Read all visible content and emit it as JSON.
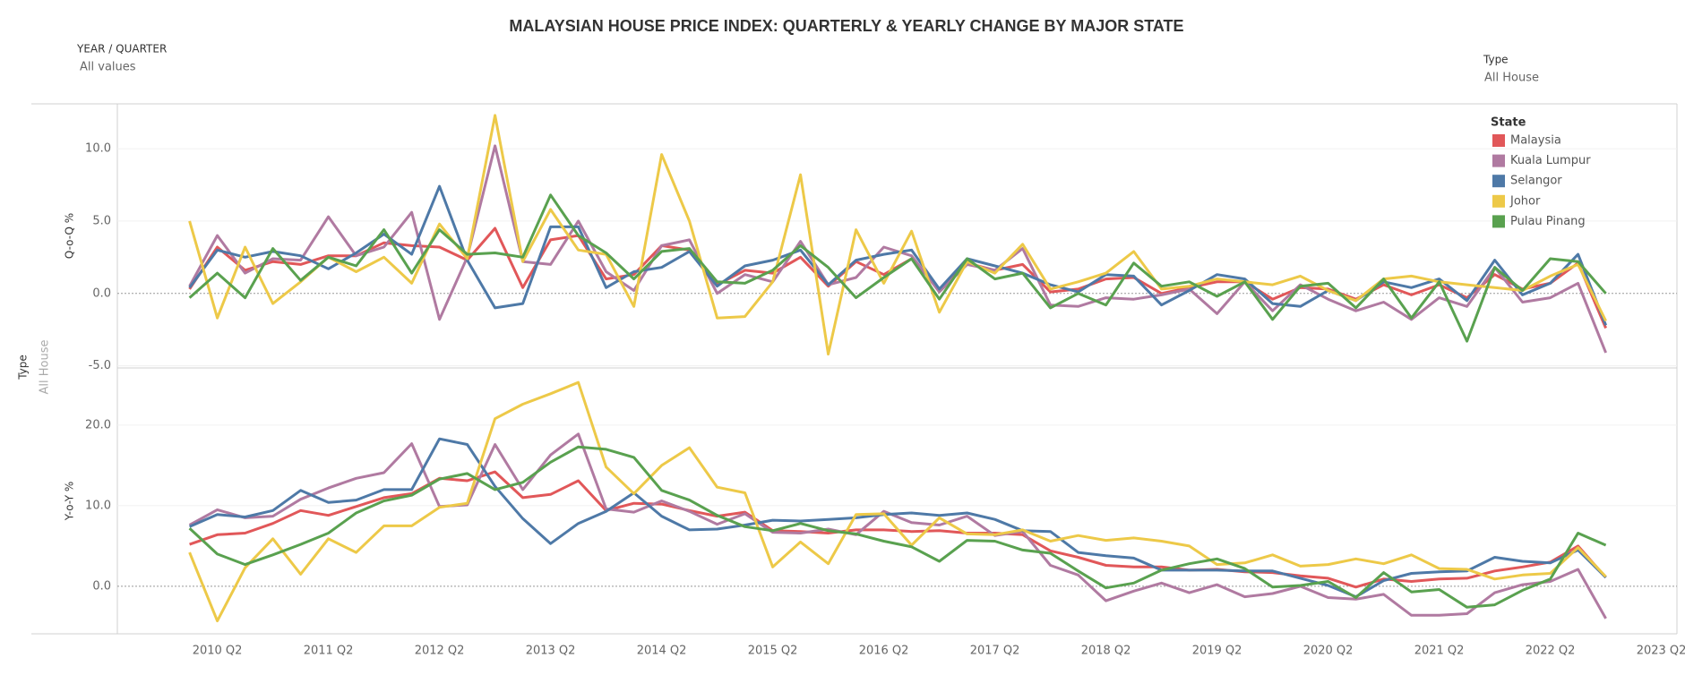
{
  "title": "MALAYSIAN HOUSE PRICE INDEX: QUARTERLY & YEARLY CHANGE BY MAJOR STATE",
  "filters": {
    "year_quarter": {
      "label": "YEAR / QUARTER",
      "value": "All values"
    },
    "type": {
      "label": "Type",
      "value": "All House"
    }
  },
  "row_header": {
    "label": "Type",
    "value": "All House"
  },
  "chart_data": [
    {
      "type": "line",
      "y_label": "Q-o-Q %",
      "legend_title": "State",
      "legend": "top-right",
      "grid": true,
      "x": [
        "2010 Q1",
        "2010 Q2",
        "2010 Q3",
        "2010 Q4",
        "2011 Q1",
        "2011 Q2",
        "2011 Q3",
        "2011 Q4",
        "2012 Q1",
        "2012 Q2",
        "2012 Q3",
        "2012 Q4",
        "2013 Q1",
        "2013 Q2",
        "2013 Q3",
        "2013 Q4",
        "2014 Q1",
        "2014 Q2",
        "2014 Q3",
        "2014 Q4",
        "2015 Q1",
        "2015 Q2",
        "2015 Q3",
        "2015 Q4",
        "2016 Q1",
        "2016 Q2",
        "2016 Q3",
        "2016 Q4",
        "2017 Q1",
        "2017 Q2",
        "2017 Q3",
        "2017 Q4",
        "2018 Q1",
        "2018 Q2",
        "2018 Q3",
        "2018 Q4",
        "2019 Q1",
        "2019 Q2",
        "2019 Q3",
        "2019 Q4",
        "2020 Q1",
        "2020 Q2",
        "2020 Q3",
        "2020 Q4",
        "2021 Q1",
        "2021 Q2",
        "2021 Q3",
        "2021 Q4",
        "2022 Q1",
        "2022 Q2",
        "2022 Q3",
        "2022 Q4"
      ],
      "ylim": [
        -5.15,
        13.1
      ],
      "yticks": [
        {
          "value": -5,
          "label": "-5.0"
        },
        {
          "value": 0,
          "label": "0.0"
        },
        {
          "value": 5,
          "label": "5.0"
        },
        {
          "value": 10,
          "label": "10.0"
        }
      ],
      "series": [
        {
          "name": "Malaysia",
          "color": "#e15759",
          "values": [
            0.3,
            3.2,
            1.6,
            2.2,
            2.0,
            2.6,
            2.6,
            3.5,
            3.3,
            3.2,
            2.3,
            4.5,
            0.4,
            3.7,
            4.0,
            1.0,
            1.3,
            3.3,
            3.0,
            0.6,
            1.6,
            1.4,
            2.5,
            0.5,
            2.2,
            1.3,
            2.4,
            0.3,
            2.1,
            1.6,
            2.0,
            0.1,
            0.3,
            1.0,
            1.1,
            0.0,
            0.4,
            0.8,
            0.8,
            -0.4,
            0.4,
            0.3,
            -0.4,
            0.6,
            -0.1,
            0.6,
            -0.3,
            1.3,
            0.3,
            0.7,
            2.1,
            -2.4
          ]
        },
        {
          "name": "Kuala Lumpur",
          "color": "#b07aa1",
          "values": [
            0.5,
            4.0,
            1.4,
            2.4,
            2.3,
            5.3,
            2.6,
            3.2,
            5.6,
            -1.8,
            2.5,
            10.2,
            2.2,
            2.0,
            5.0,
            1.5,
            0.2,
            3.3,
            3.7,
            0.0,
            1.3,
            0.8,
            3.6,
            0.6,
            1.1,
            3.2,
            2.6,
            0.1,
            2.0,
            1.6,
            3.1,
            -0.8,
            -0.9,
            -0.3,
            -0.4,
            -0.1,
            0.3,
            -1.4,
            0.8,
            -1.2,
            0.6,
            -0.4,
            -1.2,
            -0.6,
            -1.8,
            -0.3,
            -0.9,
            1.8,
            -0.6,
            -0.3,
            0.7,
            -4.1
          ]
        },
        {
          "name": "Selangor",
          "color": "#4e79a7",
          "values": [
            0.4,
            3.0,
            2.5,
            2.9,
            2.6,
            1.7,
            2.8,
            4.1,
            2.7,
            7.4,
            2.3,
            -1.0,
            -0.7,
            4.6,
            4.6,
            0.4,
            1.5,
            1.8,
            2.9,
            0.5,
            1.9,
            2.3,
            3.0,
            0.6,
            2.3,
            2.7,
            3.0,
            0.3,
            2.4,
            1.9,
            1.4,
            0.6,
            0.1,
            1.3,
            1.2,
            -0.8,
            0.2,
            1.3,
            1.0,
            -0.7,
            -0.9,
            0.2,
            -0.5,
            0.8,
            0.4,
            1.0,
            -0.5,
            2.3,
            -0.1,
            0.7,
            2.7,
            -2.2
          ]
        },
        {
          "name": "Johor",
          "color": "#edc948",
          "values": [
            5.0,
            -1.7,
            3.2,
            -0.7,
            0.8,
            2.5,
            1.5,
            2.5,
            0.7,
            4.8,
            2.4,
            12.3,
            2.2,
            5.8,
            3.0,
            2.7,
            -0.9,
            9.6,
            5.0,
            -1.7,
            -1.6,
            0.8,
            8.2,
            -4.2,
            4.4,
            0.7,
            4.3,
            -1.3,
            2.2,
            1.4,
            3.4,
            0.3,
            0.8,
            1.4,
            2.9,
            0.3,
            0.5,
            1.0,
            0.8,
            0.6,
            1.2,
            0.2,
            -0.5,
            1.0,
            1.2,
            0.8,
            0.6,
            0.4,
            0.2,
            1.2,
            2.0,
            -1.9
          ]
        },
        {
          "name": "Pulau Pinang",
          "color": "#59a14f",
          "values": [
            -0.3,
            1.4,
            -0.3,
            3.1,
            0.9,
            2.5,
            1.9,
            4.4,
            1.4,
            4.4,
            2.7,
            2.8,
            2.5,
            6.8,
            4.0,
            2.8,
            1.0,
            2.9,
            3.1,
            0.8,
            0.7,
            1.6,
            3.3,
            1.8,
            -0.3,
            1.1,
            2.4,
            -0.4,
            2.4,
            1.0,
            1.4,
            -1.0,
            0.0,
            -0.8,
            2.1,
            0.5,
            0.8,
            -0.2,
            0.8,
            -1.8,
            0.5,
            0.7,
            -1.0,
            1.0,
            -1.7,
            0.8,
            -3.3,
            1.8,
            0.2,
            2.4,
            2.2,
            0.0
          ]
        }
      ]
    },
    {
      "type": "line",
      "y_label": "Y-o-Y %",
      "grid": true,
      "x": [
        "2010 Q1",
        "2010 Q2",
        "2010 Q3",
        "2010 Q4",
        "2011 Q1",
        "2011 Q2",
        "2011 Q3",
        "2011 Q4",
        "2012 Q1",
        "2012 Q2",
        "2012 Q3",
        "2012 Q4",
        "2013 Q1",
        "2013 Q2",
        "2013 Q3",
        "2013 Q4",
        "2014 Q1",
        "2014 Q2",
        "2014 Q3",
        "2014 Q4",
        "2015 Q1",
        "2015 Q2",
        "2015 Q3",
        "2015 Q4",
        "2016 Q1",
        "2016 Q2",
        "2016 Q3",
        "2016 Q4",
        "2017 Q1",
        "2017 Q2",
        "2017 Q3",
        "2017 Q4",
        "2018 Q1",
        "2018 Q2",
        "2018 Q3",
        "2018 Q4",
        "2019 Q1",
        "2019 Q2",
        "2019 Q3",
        "2019 Q4",
        "2020 Q1",
        "2020 Q2",
        "2020 Q3",
        "2020 Q4",
        "2021 Q1",
        "2021 Q2",
        "2021 Q3",
        "2021 Q4",
        "2022 Q1",
        "2022 Q2",
        "2022 Q3",
        "2022 Q4"
      ],
      "xticks": [
        "2010 Q2",
        "2011 Q2",
        "2012 Q2",
        "2013 Q2",
        "2014 Q2",
        "2015 Q2",
        "2016 Q2",
        "2017 Q2",
        "2018 Q2",
        "2019 Q2",
        "2020 Q2",
        "2021 Q2",
        "2022 Q2",
        "2023 Q2"
      ],
      "ylim": [
        -5.9,
        27.1
      ],
      "yticks": [
        {
          "value": 0,
          "label": "0.0"
        },
        {
          "value": 10,
          "label": "10.0"
        },
        {
          "value": 20,
          "label": "20.0"
        }
      ],
      "series": [
        {
          "name": "Malaysia",
          "color": "#e15759",
          "values": [
            5.2,
            6.4,
            6.6,
            7.8,
            9.4,
            8.8,
            9.9,
            11.0,
            11.5,
            13.4,
            13.1,
            14.2,
            11.0,
            11.4,
            13.1,
            9.4,
            10.3,
            10.2,
            9.4,
            8.7,
            9.2,
            6.9,
            6.8,
            6.6,
            7.0,
            7.0,
            6.8,
            6.9,
            6.6,
            6.6,
            6.4,
            4.4,
            3.6,
            2.6,
            2.4,
            2.4,
            2.0,
            2.1,
            1.8,
            1.7,
            1.3,
            1.0,
            -0.1,
            0.9,
            0.6,
            0.9,
            1.0,
            1.9,
            2.4,
            3.0,
            5.0,
            1.1
          ]
        },
        {
          "name": "Kuala Lumpur",
          "color": "#b07aa1",
          "values": [
            7.6,
            9.5,
            8.5,
            8.7,
            10.8,
            12.2,
            13.4,
            14.1,
            17.7,
            9.9,
            10.1,
            17.6,
            12.0,
            16.3,
            18.9,
            9.6,
            9.2,
            10.6,
            9.3,
            7.7,
            9.0,
            6.7,
            6.6,
            7.1,
            6.4,
            9.3,
            7.9,
            7.6,
            8.7,
            6.3,
            6.8,
            2.6,
            1.4,
            -1.8,
            -0.6,
            0.4,
            -0.8,
            0.2,
            -1.3,
            -0.9,
            0.0,
            -1.4,
            -1.6,
            -1.0,
            -3.6,
            -3.6,
            -3.4,
            -0.8,
            0.2,
            0.6,
            2.1,
            -4.0
          ]
        },
        {
          "name": "Selangor",
          "color": "#4e79a7",
          "values": [
            7.4,
            8.9,
            8.6,
            9.4,
            11.9,
            10.4,
            10.7,
            12.0,
            12.0,
            18.3,
            17.6,
            12.4,
            8.4,
            5.3,
            7.8,
            9.3,
            11.6,
            8.7,
            7.0,
            7.1,
            7.6,
            8.2,
            8.1,
            8.3,
            8.5,
            8.9,
            9.1,
            8.8,
            9.1,
            8.3,
            6.9,
            6.8,
            4.2,
            3.8,
            3.5,
            2.0,
            2.0,
            2.0,
            1.9,
            1.9,
            1.0,
            0.1,
            -1.3,
            0.7,
            1.6,
            1.8,
            1.9,
            3.6,
            3.1,
            2.9,
            4.5,
            1.1
          ]
        },
        {
          "name": "Johor",
          "color": "#edc948",
          "values": [
            4.2,
            -4.3,
            2.3,
            5.9,
            1.5,
            5.9,
            4.2,
            7.5,
            7.5,
            9.8,
            10.3,
            20.8,
            22.6,
            23.9,
            25.3,
            14.8,
            11.5,
            15.0,
            17.2,
            12.3,
            11.6,
            2.4,
            5.5,
            2.8,
            8.9,
            9.0,
            5.1,
            8.5,
            6.5,
            6.4,
            7.0,
            5.6,
            6.3,
            5.7,
            6.0,
            5.6,
            5.0,
            2.7,
            2.9,
            3.9,
            2.5,
            2.7,
            3.4,
            2.8,
            3.9,
            2.2,
            2.1,
            0.9,
            1.4,
            1.6,
            4.8,
            1.2
          ]
        },
        {
          "name": "Pulau Pinang",
          "color": "#59a14f",
          "values": [
            7.2,
            4.0,
            2.7,
            3.9,
            5.2,
            6.6,
            9.1,
            10.6,
            11.3,
            13.3,
            14.0,
            12.0,
            12.9,
            15.4,
            17.3,
            17.0,
            16.0,
            11.9,
            10.7,
            8.8,
            7.4,
            6.9,
            7.8,
            6.9,
            6.5,
            5.6,
            4.9,
            3.1,
            5.7,
            5.6,
            4.5,
            4.1,
            1.9,
            -0.2,
            0.4,
            2.0,
            2.8,
            3.4,
            2.2,
            -0.1,
            0.1,
            0.6,
            -1.4,
            1.7,
            -0.7,
            -0.4,
            -2.6,
            -2.3,
            -0.5,
            0.9,
            6.6,
            5.1
          ]
        }
      ]
    }
  ]
}
